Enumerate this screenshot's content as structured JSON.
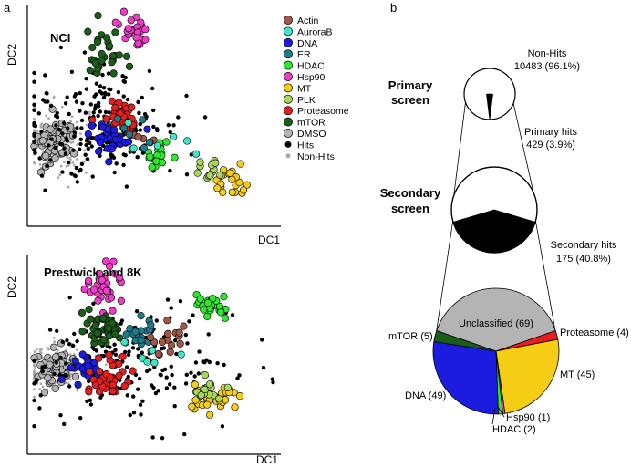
{
  "panel_labels": {
    "a": "a",
    "b": "b"
  },
  "legend": [
    {
      "label": "Actin",
      "color": "#a0574a"
    },
    {
      "label": "AuroraB",
      "color": "#3ce6c8"
    },
    {
      "label": "DNA",
      "color": "#1c1ce0"
    },
    {
      "label": "ER",
      "color": "#1f7a8c"
    },
    {
      "label": "HDAC",
      "color": "#2ee82e"
    },
    {
      "label": "Hsp90",
      "color": "#f03cc8"
    },
    {
      "label": "MT",
      "color": "#f5cd14"
    },
    {
      "label": "PLK",
      "color": "#a8d65a"
    },
    {
      "label": "Proteasome",
      "color": "#e81e1e"
    },
    {
      "label": "mTOR",
      "color": "#1a5e1a"
    },
    {
      "label": "DMSO",
      "color": "#b4b4b4"
    },
    {
      "label": "Hits",
      "color": "#000000"
    },
    {
      "label": "Non-Hits",
      "color": "#aaaaaa"
    }
  ],
  "chart_data": [
    {
      "type": "scatter",
      "title": "NCI",
      "xlabel": "DC1",
      "ylabel": "DC2",
      "clusters": [
        {
          "name": "DMSO",
          "center": [
            0.1,
            0.38
          ],
          "spread": [
            0.045,
            0.055
          ],
          "count": 60
        },
        {
          "name": "Non-Hits",
          "center": [
            0.1,
            0.38
          ],
          "spread": [
            0.07,
            0.08
          ],
          "count": 160
        },
        {
          "name": "Hits",
          "center": [
            0.3,
            0.45
          ],
          "spread": [
            0.16,
            0.13
          ],
          "count": 240
        },
        {
          "name": "Hsp90",
          "center": [
            0.43,
            0.9
          ],
          "spread": [
            0.035,
            0.04
          ],
          "count": 28
        },
        {
          "name": "mTOR",
          "center": [
            0.3,
            0.78
          ],
          "spread": [
            0.035,
            0.06
          ],
          "count": 30
        },
        {
          "name": "Proteasome",
          "center": [
            0.37,
            0.48
          ],
          "spread": [
            0.04,
            0.05
          ],
          "count": 34
        },
        {
          "name": "DNA",
          "center": [
            0.33,
            0.4
          ],
          "spread": [
            0.05,
            0.035
          ],
          "count": 30
        },
        {
          "name": "Actin",
          "center": [
            0.45,
            0.38
          ],
          "spread": [
            0.03,
            0.03
          ],
          "count": 6
        },
        {
          "name": "HDAC",
          "center": [
            0.52,
            0.32
          ],
          "spread": [
            0.035,
            0.03
          ],
          "count": 18
        },
        {
          "name": "AuroraB",
          "center": [
            0.5,
            0.4
          ],
          "spread": [
            0.08,
            0.05
          ],
          "count": 6
        },
        {
          "name": "ER",
          "center": [
            0.42,
            0.42
          ],
          "spread": [
            0.05,
            0.04
          ],
          "count": 6
        },
        {
          "name": "MT",
          "center": [
            0.8,
            0.2
          ],
          "spread": [
            0.035,
            0.03
          ],
          "count": 24
        },
        {
          "name": "PLK",
          "center": [
            0.73,
            0.23
          ],
          "spread": [
            0.03,
            0.03
          ],
          "count": 12
        }
      ]
    },
    {
      "type": "scatter",
      "title": "Prestwick and 8K",
      "xlabel": "DC1",
      "ylabel": "DC2",
      "clusters": [
        {
          "name": "Non-Hits",
          "center": [
            0.11,
            0.43
          ],
          "spread": [
            0.07,
            0.06
          ],
          "count": 170
        },
        {
          "name": "DMSO",
          "center": [
            0.11,
            0.43
          ],
          "spread": [
            0.05,
            0.045
          ],
          "count": 60
        },
        {
          "name": "Hits",
          "center": [
            0.42,
            0.45
          ],
          "spread": [
            0.2,
            0.14
          ],
          "count": 200
        },
        {
          "name": "Hsp90",
          "center": [
            0.3,
            0.85
          ],
          "spread": [
            0.035,
            0.06
          ],
          "count": 36
        },
        {
          "name": "mTOR",
          "center": [
            0.29,
            0.63
          ],
          "spread": [
            0.035,
            0.05
          ],
          "count": 40
        },
        {
          "name": "DNA",
          "center": [
            0.23,
            0.44
          ],
          "spread": [
            0.04,
            0.04
          ],
          "count": 26
        },
        {
          "name": "Proteasome",
          "center": [
            0.33,
            0.38
          ],
          "spread": [
            0.045,
            0.045
          ],
          "count": 40
        },
        {
          "name": "ER",
          "center": [
            0.43,
            0.6
          ],
          "spread": [
            0.04,
            0.05
          ],
          "count": 18
        },
        {
          "name": "Actin",
          "center": [
            0.56,
            0.57
          ],
          "spread": [
            0.04,
            0.045
          ],
          "count": 16
        },
        {
          "name": "AuroraB",
          "center": [
            0.48,
            0.5
          ],
          "spread": [
            0.05,
            0.04
          ],
          "count": 6
        },
        {
          "name": "HDAC",
          "center": [
            0.73,
            0.75
          ],
          "spread": [
            0.04,
            0.035
          ],
          "count": 26
        },
        {
          "name": "MT",
          "center": [
            0.75,
            0.28
          ],
          "spread": [
            0.05,
            0.03
          ],
          "count": 34
        },
        {
          "name": "PLK",
          "center": [
            0.72,
            0.3
          ],
          "spread": [
            0.04,
            0.03
          ],
          "count": 14
        }
      ]
    },
    {
      "type": "pie",
      "title": "Primary screen",
      "slices": [
        {
          "label": "Non-Hits",
          "value": 10483,
          "percent": "96.1%",
          "color": "#ffffff"
        },
        {
          "label": "Primary hits",
          "value": 429,
          "percent": "3.9%",
          "color": "#000000"
        }
      ],
      "labels": {
        "nonhits_name": "Non-Hits",
        "nonhits_value": "10483 (96.1%)",
        "hits_name": "Primary hits",
        "hits_value": "429 (3.9%)"
      }
    },
    {
      "type": "pie",
      "title": "Secondary screen",
      "slices": [
        {
          "label": "Non-hits",
          "value": 254,
          "color": "#ffffff"
        },
        {
          "label": "Secondary hits",
          "value": 175,
          "percent": "40.8%",
          "color": "#000000"
        }
      ],
      "labels": {
        "hits_name": "Secondary hits",
        "hits_value": "175 (40.8%)"
      }
    },
    {
      "type": "pie",
      "title": "",
      "slices": [
        {
          "label": "Unclassified (69)",
          "value": 69,
          "color": "#b4b4b4"
        },
        {
          "label": "Proteasome (4)",
          "value": 4,
          "color": "#e81e1e"
        },
        {
          "label": "MT (45)",
          "value": 45,
          "color": "#f5cd14"
        },
        {
          "label": "Hsp90 (1)",
          "value": 1,
          "color": "#f03cc8"
        },
        {
          "label": "HDAC (2)",
          "value": 2,
          "color": "#2ee82e"
        },
        {
          "label": "DNA (49)",
          "value": 49,
          "color": "#1c1ce0"
        },
        {
          "label": "mTOR (5)",
          "value": 5,
          "color": "#1a5e1a"
        }
      ]
    }
  ]
}
